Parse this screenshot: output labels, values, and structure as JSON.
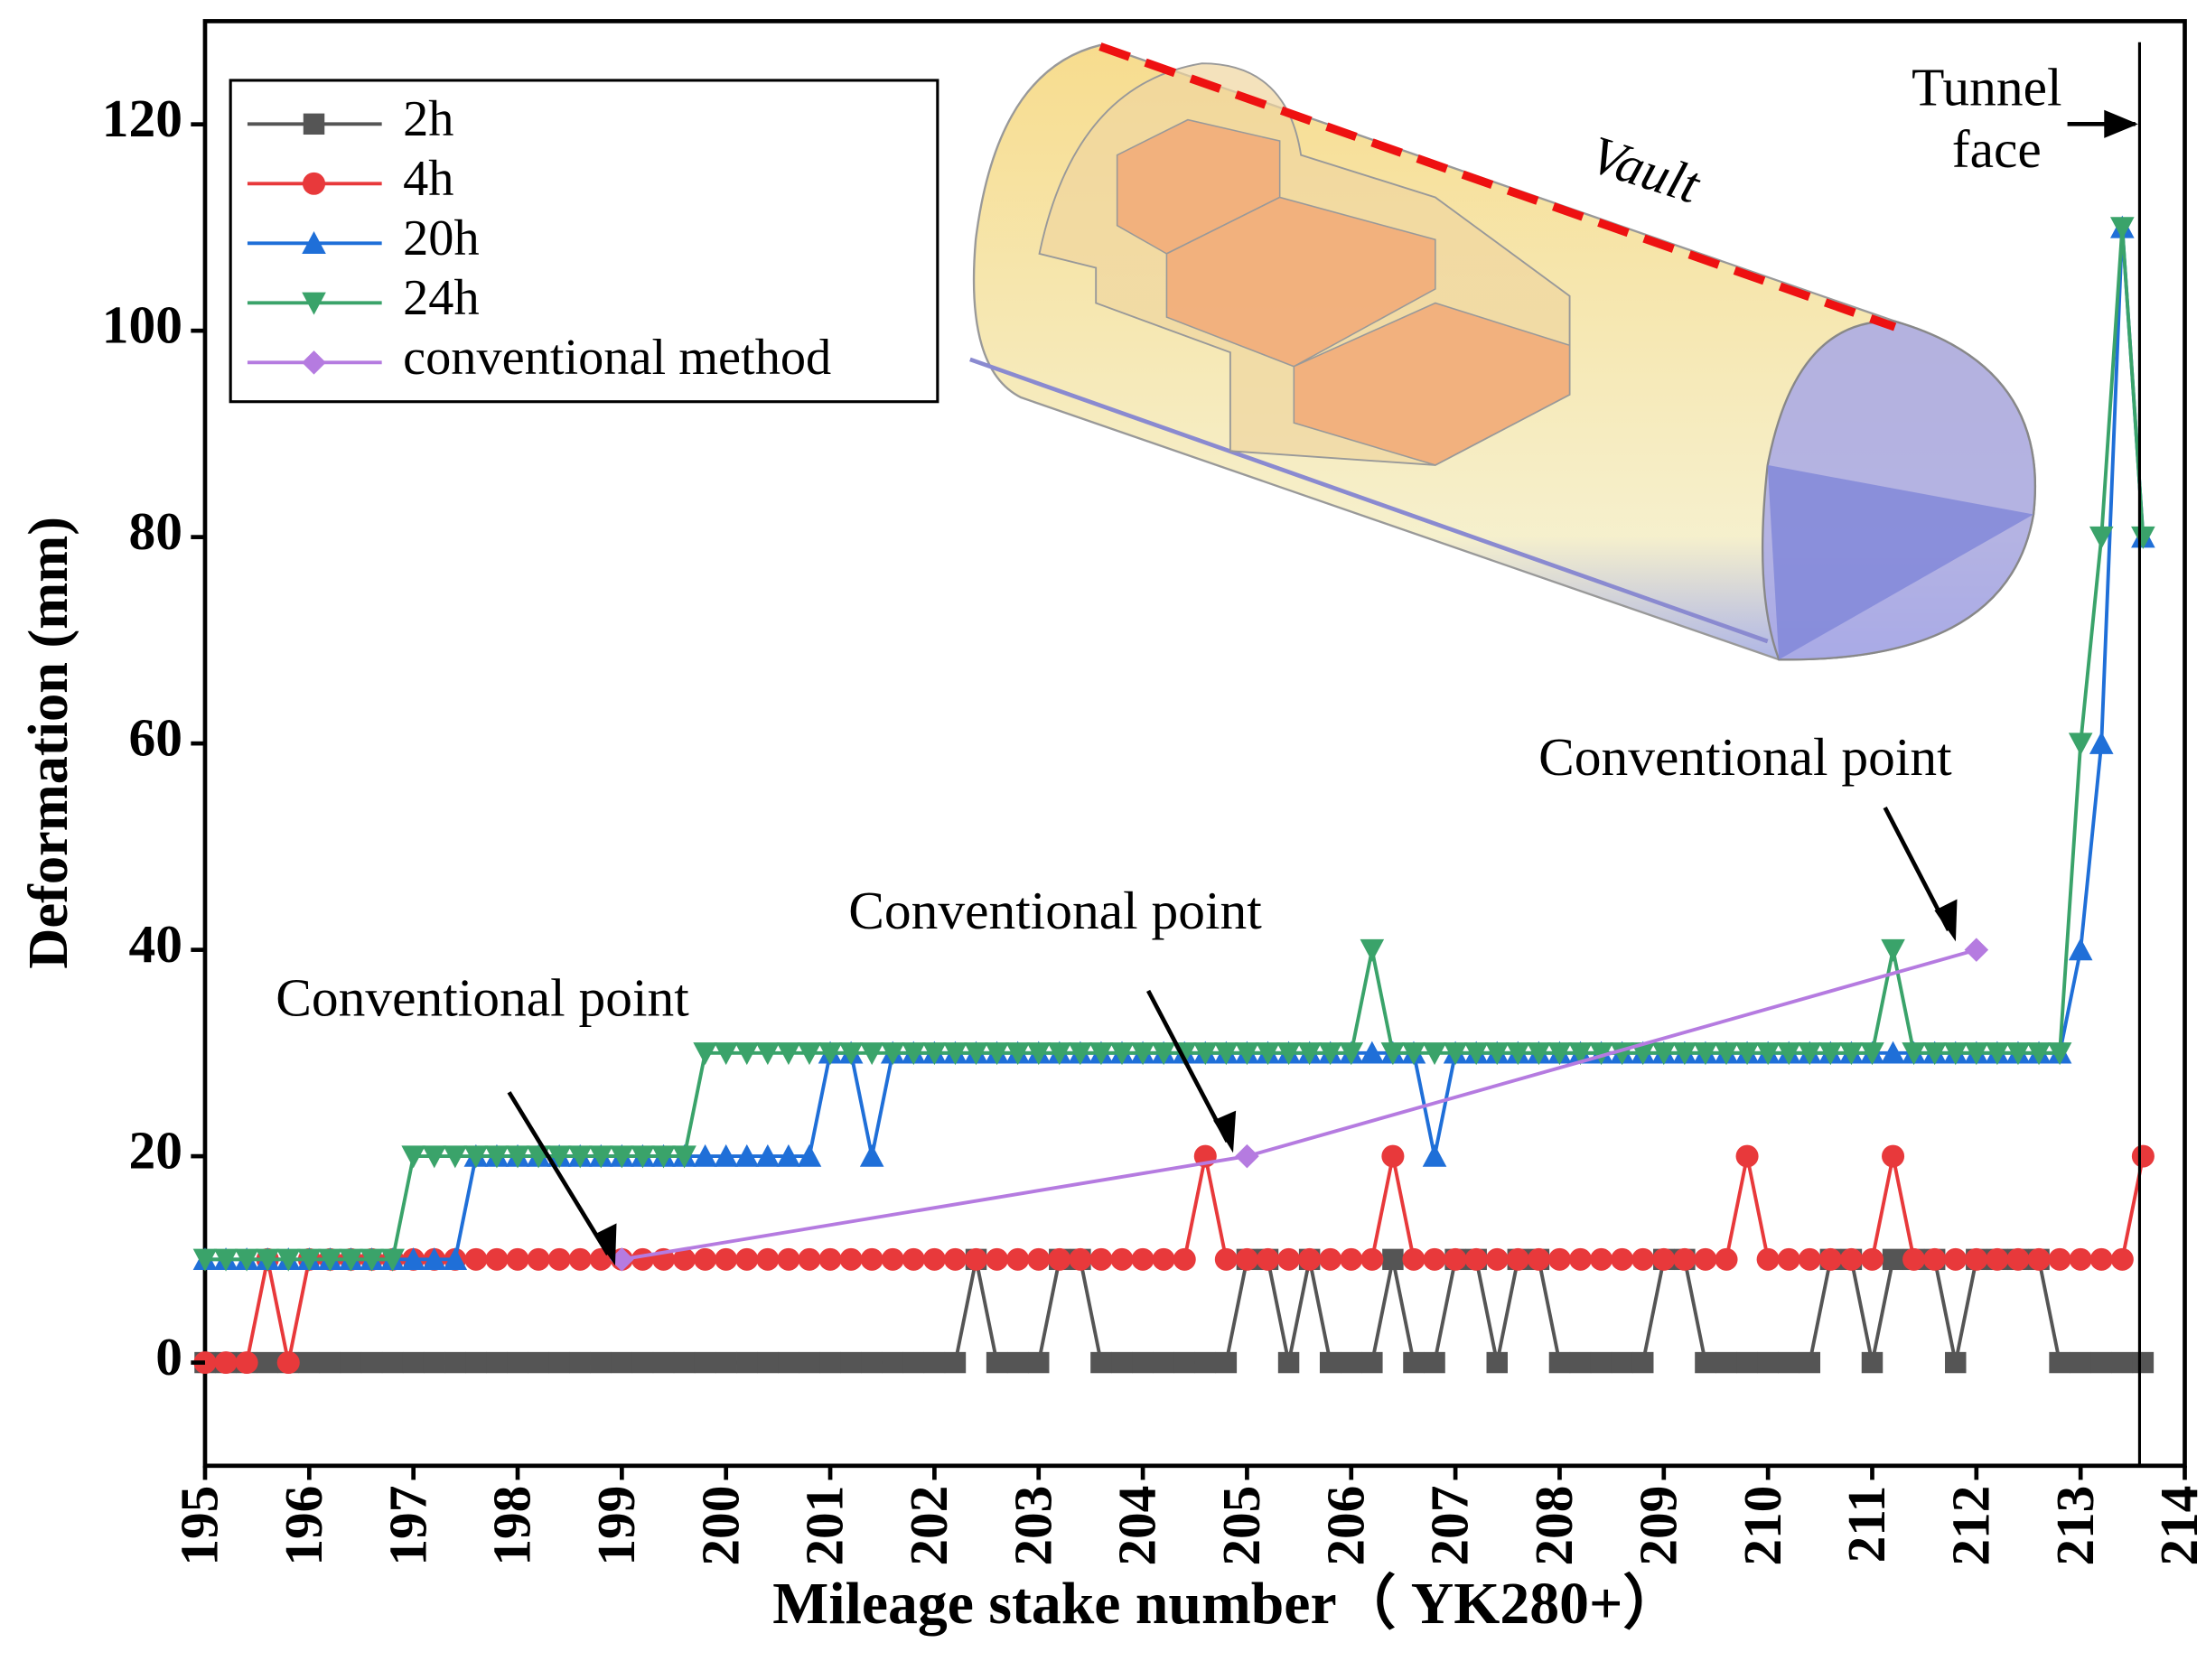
{
  "chart_data": {
    "type": "line",
    "xlabel": "Mileage stake number（ YK280+）",
    "ylabel": "Deformation (mm)",
    "annotations": [
      "Conventional point",
      "Conventional point",
      "Conventional point",
      "Vault",
      "Tunnel",
      "face"
    ],
    "xlim": [
      195,
      214
    ],
    "ylim": [
      -10,
      130
    ],
    "xticks": [
      195,
      196,
      197,
      198,
      199,
      200,
      201,
      202,
      203,
      204,
      205,
      206,
      207,
      208,
      209,
      210,
      211,
      212,
      213,
      214
    ],
    "yticks": [
      0,
      20,
      40,
      60,
      80,
      100,
      120
    ],
    "x": [
      195,
      195.2,
      195.4,
      195.6,
      195.8,
      196,
      196.2,
      196.4,
      196.6,
      196.8,
      197,
      197.2,
      197.4,
      197.6,
      197.8,
      198,
      198.2,
      198.4,
      198.6,
      198.8,
      199,
      199.2,
      199.4,
      199.6,
      199.8,
      200,
      200.2,
      200.4,
      200.6,
      200.8,
      201,
      201.2,
      201.4,
      201.6,
      201.8,
      202,
      202.2,
      202.4,
      202.6,
      202.8,
      203,
      203.2,
      203.4,
      203.6,
      203.8,
      204,
      204.2,
      204.4,
      204.6,
      204.8,
      205,
      205.2,
      205.4,
      205.6,
      205.8,
      206,
      206.2,
      206.4,
      206.6,
      206.8,
      207,
      207.2,
      207.4,
      207.6,
      207.8,
      208,
      208.2,
      208.4,
      208.6,
      208.8,
      209,
      209.2,
      209.4,
      209.6,
      209.8,
      210,
      210.2,
      210.4,
      210.6,
      210.8,
      211,
      211.2,
      211.4,
      211.6,
      211.8,
      212,
      212.2,
      212.4,
      212.6,
      212.8,
      213,
      213.2,
      213.4,
      213.6
    ],
    "series": [
      {
        "name": "2h",
        "color": "#555555",
        "marker": "square",
        "values": [
          0,
          0,
          0,
          0,
          0,
          0,
          0,
          0,
          0,
          0,
          0,
          0,
          0,
          0,
          0,
          0,
          0,
          0,
          0,
          0,
          0,
          0,
          0,
          0,
          0,
          0,
          0,
          0,
          0,
          0,
          0,
          0,
          0,
          0,
          0,
          0,
          0,
          10,
          0,
          0,
          0,
          10,
          10,
          0,
          0,
          0,
          0,
          0,
          0,
          0,
          10,
          10,
          0,
          10,
          0,
          0,
          0,
          10,
          0,
          0,
          10,
          10,
          0,
          10,
          10,
          0,
          0,
          0,
          0,
          0,
          10,
          10,
          0,
          0,
          0,
          0,
          0,
          0,
          10,
          10,
          0,
          10,
          10,
          10,
          0,
          10,
          10,
          10,
          10,
          0,
          0,
          0,
          0,
          0
        ]
      },
      {
        "name": "4h",
        "color": "#e8393b",
        "marker": "circle",
        "values": [
          0,
          0,
          0,
          10,
          0,
          10,
          10,
          10,
          10,
          10,
          10,
          10,
          10,
          10,
          10,
          10,
          10,
          10,
          10,
          10,
          10,
          10,
          10,
          10,
          10,
          10,
          10,
          10,
          10,
          10,
          10,
          10,
          10,
          10,
          10,
          10,
          10,
          10,
          10,
          10,
          10,
          10,
          10,
          10,
          10,
          10,
          10,
          10,
          20,
          10,
          10,
          10,
          10,
          10,
          10,
          10,
          10,
          20,
          10,
          10,
          10,
          10,
          10,
          10,
          10,
          10,
          10,
          10,
          10,
          10,
          10,
          10,
          10,
          10,
          20,
          10,
          10,
          10,
          10,
          10,
          10,
          20,
          10,
          10,
          10,
          10,
          10,
          10,
          10,
          10,
          10,
          10,
          10,
          20
        ]
      },
      {
        "name": "20h",
        "color": "#1f6fd8",
        "marker": "up",
        "values": [
          10,
          10,
          10,
          10,
          10,
          10,
          10,
          10,
          10,
          10,
          10,
          10,
          10,
          20,
          20,
          20,
          20,
          20,
          20,
          20,
          20,
          20,
          20,
          20,
          20,
          20,
          20,
          20,
          20,
          20,
          30,
          30,
          20,
          30,
          30,
          30,
          30,
          30,
          30,
          30,
          30,
          30,
          30,
          30,
          30,
          30,
          30,
          30,
          30,
          30,
          30,
          30,
          30,
          30,
          30,
          30,
          30,
          30,
          30,
          20,
          30,
          30,
          30,
          30,
          30,
          30,
          30,
          30,
          30,
          30,
          30,
          30,
          30,
          30,
          30,
          30,
          30,
          30,
          30,
          30,
          30,
          30,
          30,
          30,
          30,
          30,
          30,
          30,
          30,
          30,
          40,
          60,
          110,
          80
        ]
      },
      {
        "name": "24h",
        "color": "#3aa36a",
        "marker": "down",
        "values": [
          10,
          10,
          10,
          10,
          10,
          10,
          10,
          10,
          10,
          10,
          20,
          20,
          20,
          20,
          20,
          20,
          20,
          20,
          20,
          20,
          20,
          20,
          20,
          20,
          30,
          30,
          30,
          30,
          30,
          30,
          30,
          30,
          30,
          30,
          30,
          30,
          30,
          30,
          30,
          30,
          30,
          30,
          30,
          30,
          30,
          30,
          30,
          30,
          30,
          30,
          30,
          30,
          30,
          30,
          30,
          30,
          40,
          30,
          30,
          30,
          30,
          30,
          30,
          30,
          30,
          30,
          30,
          30,
          30,
          30,
          30,
          30,
          30,
          30,
          30,
          30,
          30,
          30,
          30,
          30,
          30,
          40,
          30,
          30,
          30,
          30,
          30,
          30,
          30,
          30,
          60,
          80,
          110,
          80
        ]
      },
      {
        "name": "conventional method",
        "color": "#b57be0",
        "marker": "diamond",
        "x": [
          199,
          205,
          212
        ],
        "values": [
          10,
          20,
          40
        ]
      }
    ]
  }
}
